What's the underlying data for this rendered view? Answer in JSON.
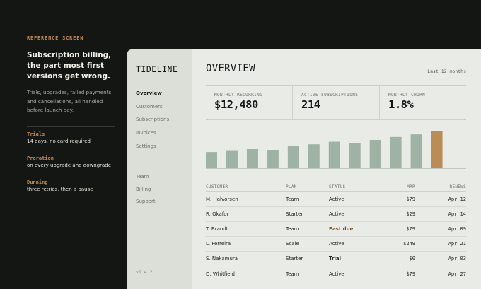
{
  "reference": {
    "tag": "REFERENCE SCREEN",
    "title": "Subscription billing, the part most first versions get wrong.",
    "description": "Trials, upgrades, failed payments and cancellations, all handled before launch day.",
    "items": [
      {
        "key": "Trials",
        "value": "14 days, no card required"
      },
      {
        "key": "Proration",
        "value": "on every upgrade and downgrade"
      },
      {
        "key": "Dunning",
        "value": "three retries, then a pause"
      }
    ]
  },
  "app": {
    "logo": "TIDELINE",
    "nav": [
      {
        "label": "Overview",
        "active": true
      },
      {
        "label": "Customers",
        "active": false
      },
      {
        "label": "Subscriptions",
        "active": false
      },
      {
        "label": "Invoices",
        "active": false
      },
      {
        "label": "Settings",
        "active": false
      }
    ],
    "nav_secondary": [
      {
        "label": "Team"
      },
      {
        "label": "Billing"
      },
      {
        "label": "Support"
      }
    ],
    "version": "v1.4.2",
    "page_title": "OVERVIEW",
    "range": "Last 12 months",
    "stats": [
      {
        "label": "MONTHLY RECURRING",
        "value": "$12,480"
      },
      {
        "label": "ACTIVE SUBSCRIPTIONS",
        "value": "214"
      },
      {
        "label": "MONTHLY CHURN",
        "value": "1.8%"
      }
    ],
    "colors": {
      "bar": "#9fb3a5",
      "bar_highlight": "#b98d55"
    },
    "chart_data": {
      "type": "bar",
      "values": [
        44,
        49,
        52,
        50,
        60,
        65,
        72,
        69,
        77,
        85,
        92,
        100
      ],
      "highlight_index": 11,
      "ylim": [
        0,
        100
      ],
      "grid": false,
      "title": "",
      "xlabel": "",
      "ylabel": ""
    },
    "table": {
      "columns": [
        "CUSTOMER",
        "PLAN",
        "STATUS",
        "MRR",
        "RENEWS"
      ],
      "rows": [
        {
          "customer": "M. Halvorsen",
          "plan": "Team",
          "status": "Active",
          "mrr": "$79",
          "renews": "Apr 12"
        },
        {
          "customer": "R. Okafor",
          "plan": "Starter",
          "status": "Active",
          "mrr": "$29",
          "renews": "Apr 14"
        },
        {
          "customer": "T. Brandt",
          "plan": "Team",
          "status": "Past due",
          "mrr": "$79",
          "renews": "Apr 09"
        },
        {
          "customer": "L. Ferreira",
          "plan": "Scale",
          "status": "Active",
          "mrr": "$249",
          "renews": "Apr 21"
        },
        {
          "customer": "S. Nakamura",
          "plan": "Starter",
          "status": "Trial",
          "mrr": "$0",
          "renews": "Apr 03"
        },
        {
          "customer": "D. Whitfield",
          "plan": "Team",
          "status": "Active",
          "mrr": "$79",
          "renews": "Apr 27"
        }
      ]
    }
  }
}
